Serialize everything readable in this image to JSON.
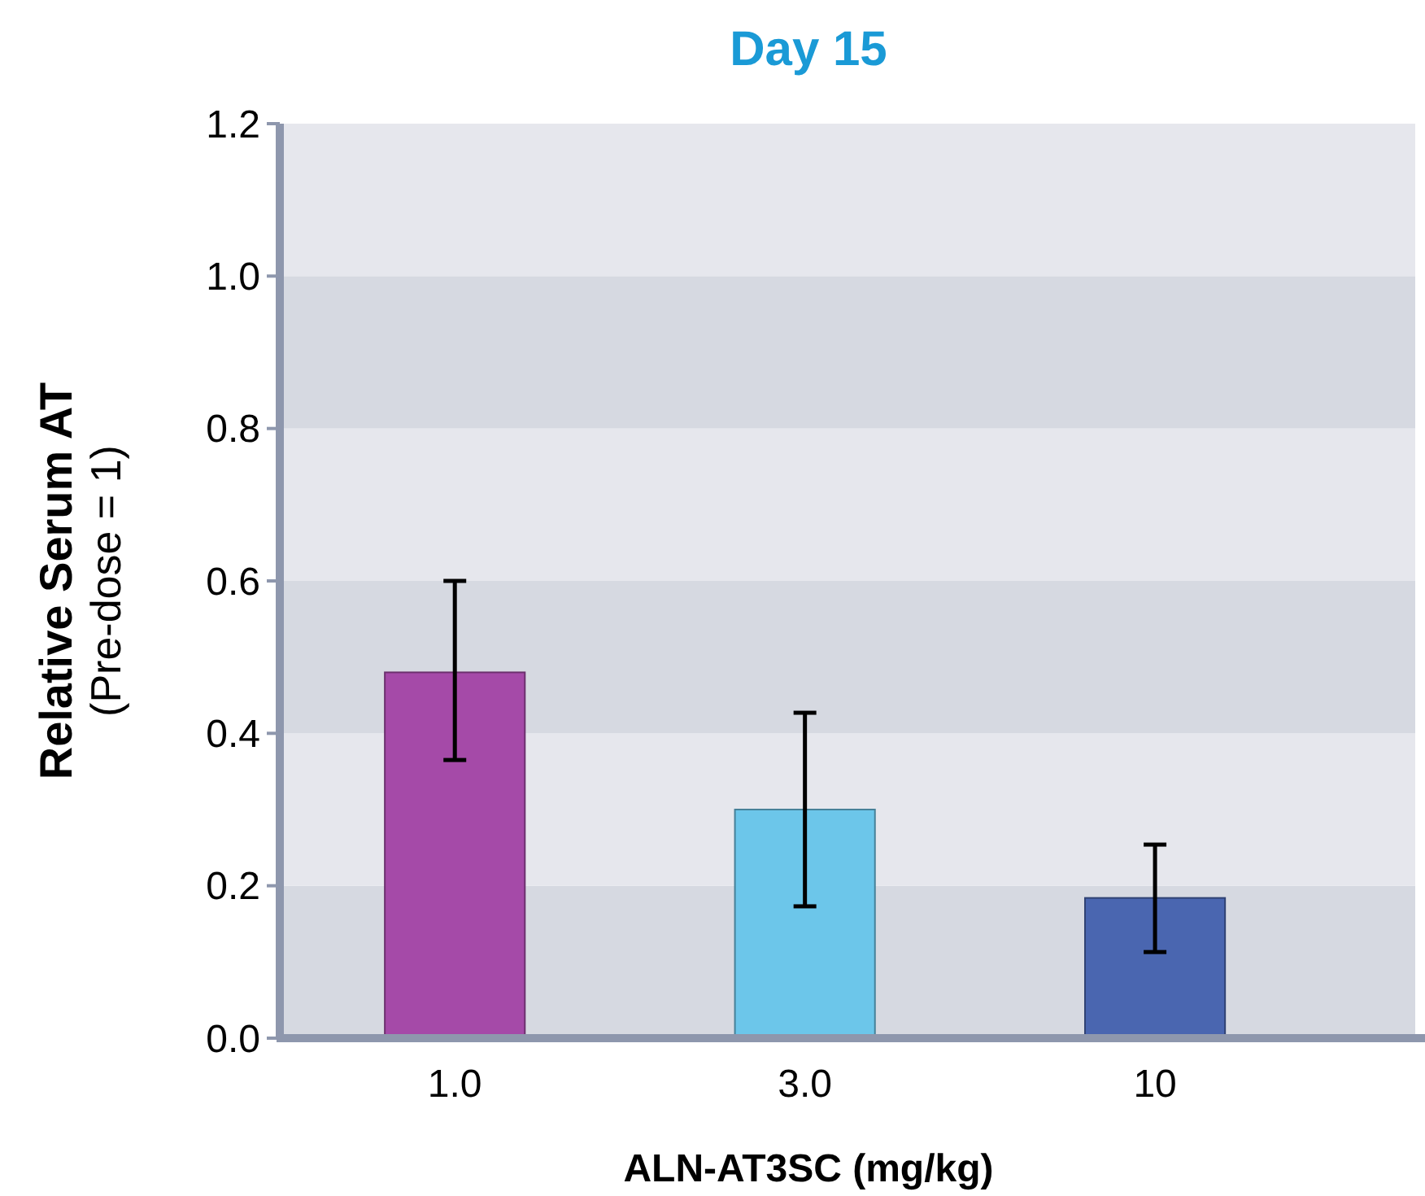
{
  "chart_data": {
    "type": "bar",
    "title": "Day 15",
    "xlabel": "ALN-AT3SC (mg/kg)",
    "ylabel": "Relative Serum AT\n(Pre-dose = 1)",
    "categories": [
      "1.0",
      "3.0",
      "10"
    ],
    "values": [
      0.48,
      0.3,
      0.184
    ],
    "colors": [
      "#a54aa8",
      "#6cc6ea",
      "#4a66b0"
    ],
    "errors": [
      [
        0.365,
        0.6
      ],
      [
        0.173,
        0.427
      ],
      [
        0.113,
        0.254
      ]
    ],
    "ylim": [
      0,
      1.2
    ],
    "yticks": [
      {
        "value": 0,
        "label": "0.0"
      },
      {
        "value": 0.2,
        "label": "0.2"
      },
      {
        "value": 0.4,
        "label": "0.4"
      },
      {
        "value": 0.6,
        "label": "0.6"
      },
      {
        "value": 0.8,
        "label": "0.8"
      },
      {
        "value": 1,
        "label": "1.0"
      },
      {
        "value": 1.2,
        "label": "1.2"
      }
    ]
  }
}
